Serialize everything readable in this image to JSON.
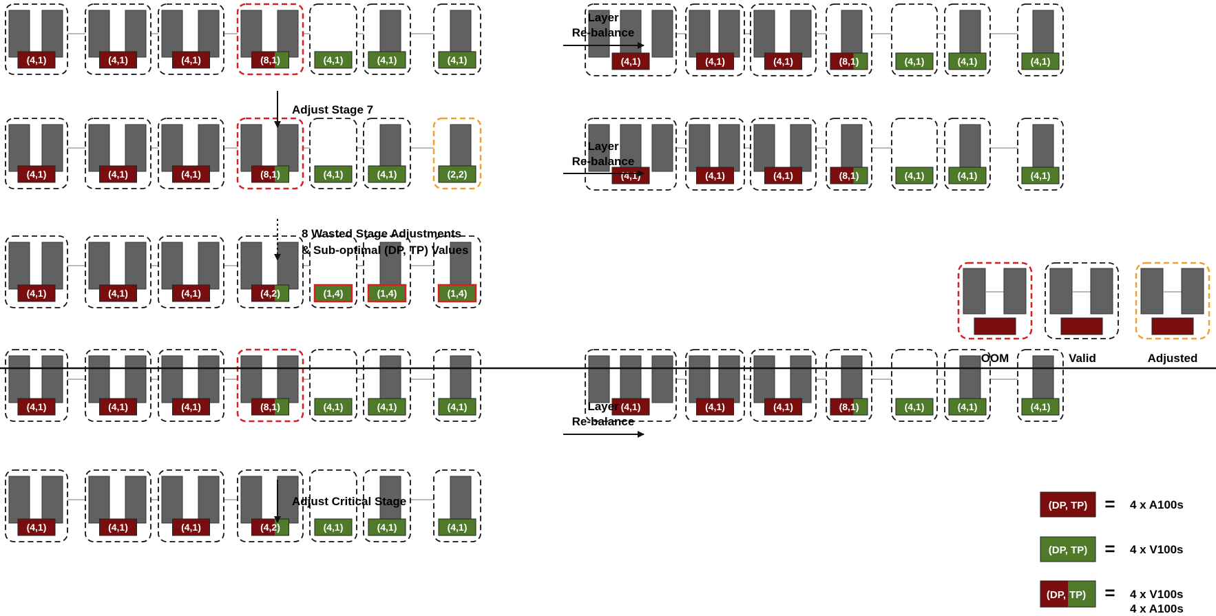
{
  "colors": {
    "a100": "#7a0d0d",
    "v100": "#4f7a2a",
    "layer": "#616161",
    "oom_border": "#d62020",
    "valid_border": "#111111",
    "adjusted_border": "#f0a030"
  },
  "top": {
    "row1": [
      {
        "layers": 2,
        "label": "(4,1)",
        "color": "a100",
        "border": "valid"
      },
      {
        "layers": 2,
        "label": "(4,1)",
        "color": "a100",
        "border": "valid"
      },
      {
        "layers": 2,
        "label": "(4,1)",
        "color": "a100",
        "border": "valid"
      },
      {
        "layers": 2,
        "label": "(8,1)",
        "color": "mixed",
        "border": "oom"
      },
      {
        "layers": 0,
        "label": "(4,1)",
        "color": "v100",
        "border": "valid"
      },
      {
        "layers": 1,
        "label": "(4,1)",
        "color": "v100",
        "border": "valid"
      },
      {
        "layers": 1,
        "label": "(4,1)",
        "color": "v100",
        "border": "valid"
      }
    ],
    "arrow_down_label": "Adjust Stage 7",
    "row2": [
      {
        "layers": 2,
        "label": "(4,1)",
        "color": "a100",
        "border": "valid"
      },
      {
        "layers": 2,
        "label": "(4,1)",
        "color": "a100",
        "border": "valid"
      },
      {
        "layers": 2,
        "label": "(4,1)",
        "color": "a100",
        "border": "valid"
      },
      {
        "layers": 2,
        "label": "(8,1)",
        "color": "mixed",
        "border": "oom"
      },
      {
        "layers": 0,
        "label": "(4,1)",
        "color": "v100",
        "border": "valid"
      },
      {
        "layers": 1,
        "label": "(4,1)",
        "color": "v100",
        "border": "valid"
      },
      {
        "layers": 1,
        "label": "(2,2)",
        "color": "v100",
        "border": "adjusted"
      }
    ],
    "dotted_label_line1": "8 Wasted Stage Adjustments",
    "dotted_label_line2": "& Sub-optimal (DP, TP) Values",
    "row3": [
      {
        "layers": 2,
        "label": "(4,1)",
        "color": "a100",
        "border": "valid"
      },
      {
        "layers": 2,
        "label": "(4,1)",
        "color": "a100",
        "border": "valid"
      },
      {
        "layers": 2,
        "label": "(4,1)",
        "color": "a100",
        "border": "valid"
      },
      {
        "layers": 2,
        "label": "(4,2)",
        "color": "mixed",
        "border": "valid"
      },
      {
        "layers": 0,
        "label": "(1,4)",
        "color": "v100",
        "border": "valid",
        "outlined": true
      },
      {
        "layers": 1,
        "label": "(1,4)",
        "color": "v100",
        "border": "valid",
        "outlined": true
      },
      {
        "layers": 1,
        "label": "(1,4)",
        "color": "v100",
        "border": "valid",
        "outlined": true
      }
    ]
  },
  "rebalance": {
    "line1": "Layer",
    "line2": "Re-balance"
  },
  "rebalanced_row": [
    {
      "layers": 3,
      "label": "(4,1)",
      "color": "a100",
      "border": "valid"
    },
    {
      "layers": 2,
      "label": "(4,1)",
      "color": "a100",
      "border": "valid"
    },
    {
      "layers": 2,
      "label": "(4,1)",
      "color": "a100",
      "border": "valid"
    },
    {
      "layers": 1,
      "label": "(8,1)",
      "color": "mixed",
      "border": "valid"
    },
    {
      "layers": 0,
      "label": "(4,1)",
      "color": "v100",
      "border": "valid"
    },
    {
      "layers": 1,
      "label": "(4,1)",
      "color": "v100",
      "border": "valid"
    },
    {
      "layers": 1,
      "label": "(4,1)",
      "color": "v100",
      "border": "valid"
    }
  ],
  "bottom": {
    "row1": [
      {
        "layers": 2,
        "label": "(4,1)",
        "color": "a100",
        "border": "valid"
      },
      {
        "layers": 2,
        "label": "(4,1)",
        "color": "a100",
        "border": "valid"
      },
      {
        "layers": 2,
        "label": "(4,1)",
        "color": "a100",
        "border": "valid"
      },
      {
        "layers": 2,
        "label": "(8,1)",
        "color": "mixed",
        "border": "oom"
      },
      {
        "layers": 0,
        "label": "(4,1)",
        "color": "v100",
        "border": "valid"
      },
      {
        "layers": 1,
        "label": "(4,1)",
        "color": "v100",
        "border": "valid"
      },
      {
        "layers": 1,
        "label": "(4,1)",
        "color": "v100",
        "border": "valid"
      }
    ],
    "arrow_down_label": "Adjust Critical Stage",
    "row2": [
      {
        "layers": 2,
        "label": "(4,1)",
        "color": "a100",
        "border": "valid"
      },
      {
        "layers": 2,
        "label": "(4,1)",
        "color": "a100",
        "border": "valid"
      },
      {
        "layers": 2,
        "label": "(4,1)",
        "color": "a100",
        "border": "valid"
      },
      {
        "layers": 2,
        "label": "(4,2)",
        "color": "mixed",
        "border": "valid"
      },
      {
        "layers": 0,
        "label": "(4,1)",
        "color": "v100",
        "border": "valid"
      },
      {
        "layers": 1,
        "label": "(4,1)",
        "color": "v100",
        "border": "valid"
      },
      {
        "layers": 1,
        "label": "(4,1)",
        "color": "v100",
        "border": "valid"
      }
    ]
  },
  "legend": {
    "oom": "OOM",
    "valid": "Valid",
    "adjusted": "Adjusted",
    "key_a100": {
      "box": "(DP, TP)",
      "text": "4 x A100s"
    },
    "key_v100": {
      "box": "(DP, TP)",
      "text": "4 x V100s"
    },
    "key_mixed": {
      "box_left": "(DP,",
      "box_right": "TP)",
      "text_line1": "4 x V100s",
      "text_line2": "4 x A100s"
    },
    "equals": "="
  }
}
